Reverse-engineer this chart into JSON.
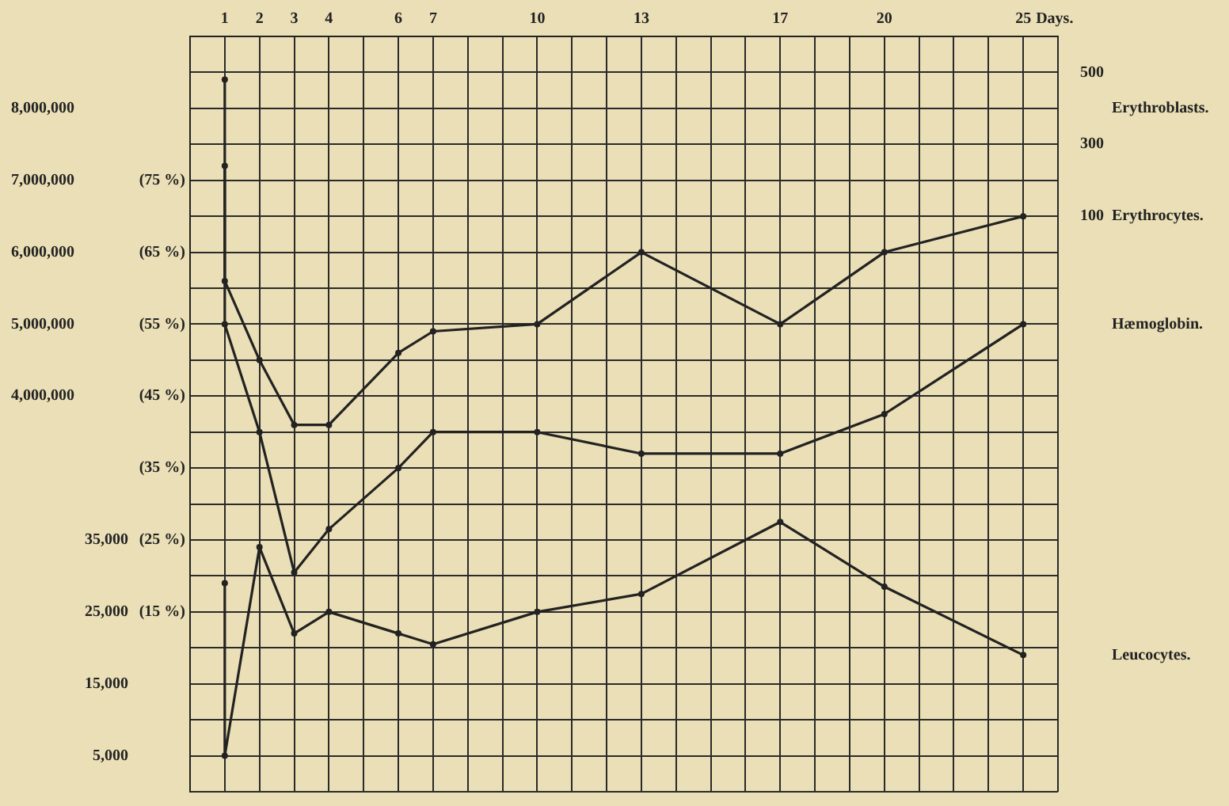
{
  "chart_data": {
    "type": "line",
    "xlabel": "Days.",
    "categories": [
      null,
      "1",
      "2",
      "3",
      "4",
      null,
      "6",
      "7",
      null,
      null,
      "10",
      null,
      null,
      "13",
      null,
      null,
      null,
      "17",
      null,
      null,
      "20",
      null,
      null,
      null,
      "25",
      null
    ],
    "series": [
      {
        "name": "Erythrocytes.",
        "color": "#222222",
        "axis": "y3",
        "x": [
          "1",
          "1",
          "2",
          "3",
          "4",
          "6",
          "7",
          "10",
          "13",
          "17",
          "20",
          "25"
        ],
        "values": [
          8400000,
          5600000,
          4500000,
          3600000,
          3600000,
          4600000,
          4900000,
          5000000,
          6000000,
          5000000,
          6000000,
          6500000
        ]
      },
      {
        "name": "Hæmoglobin.",
        "color": "#222222",
        "x": [
          "1",
          "1",
          "2",
          "3",
          "4",
          "6",
          "7",
          "10",
          "13",
          "17",
          "20",
          "25"
        ],
        "values": [
          77,
          55,
          40,
          20.5,
          26.5,
          35,
          40,
          40,
          37,
          37,
          42.5,
          55
        ]
      },
      {
        "name": "Leucocytes.",
        "color": "#222222",
        "axis": "y2",
        "x": [
          "1",
          "1",
          "2",
          "3",
          "4",
          "6",
          "7",
          "10",
          "13",
          "17",
          "20",
          "25"
        ],
        "values": [
          29000,
          5000,
          34000,
          22000,
          25000,
          22000,
          20500,
          25000,
          27500,
          37500,
          28500,
          19000
        ]
      }
    ],
    "ylim": [
      -10,
      95
    ],
    "yticks": [
      {
        "value": 95,
        "label": null
      },
      {
        "value": 90,
        "label": null
      },
      {
        "value": 85,
        "label": null
      },
      {
        "value": 80,
        "label": null
      },
      {
        "value": 75,
        "label": "(75 %)"
      },
      {
        "value": 70,
        "label": null
      },
      {
        "value": 65,
        "label": "(65 %)"
      },
      {
        "value": 60,
        "label": null
      },
      {
        "value": 55,
        "label": "(55 %)"
      },
      {
        "value": 50,
        "label": null
      },
      {
        "value": 45,
        "label": "(45 %)"
      },
      {
        "value": 40,
        "label": null
      },
      {
        "value": 35,
        "label": "(35 %)"
      },
      {
        "value": 30,
        "label": null
      },
      {
        "value": 25,
        "label": "(25 %)"
      },
      {
        "value": 20,
        "label": null
      },
      {
        "value": 15,
        "label": "(15 %)"
      },
      {
        "value": 10,
        "label": null
      },
      {
        "value": 5,
        "label": null
      },
      {
        "value": 0,
        "label": null
      },
      {
        "value": -5,
        "label": null
      },
      {
        "value": -10,
        "label": null
      }
    ],
    "y3lim": [
      -1500000,
      9000000
    ],
    "y3ticks": [
      {
        "value": 8000000,
        "label": "8,000,000"
      },
      {
        "value": 7000000,
        "label": "7,000,000"
      },
      {
        "value": 6000000,
        "label": "6,000,000"
      },
      {
        "value": 5000000,
        "label": "5,000,000"
      },
      {
        "value": 4000000,
        "label": "4,000,000"
      }
    ],
    "y2lim": [
      0,
      105000
    ],
    "y2ticks": [
      {
        "value": 35000,
        "label": "35,000"
      },
      {
        "value": 25000,
        "label": "25,000"
      },
      {
        "value": 15000,
        "label": "15,000"
      },
      {
        "value": 5000,
        "label": "5,000"
      }
    ],
    "annotations": [
      "500",
      "Erythroblasts.",
      "300",
      "100"
    ],
    "grid": true,
    "legend": false,
    "marker": "circle",
    "line_style": "solid"
  }
}
